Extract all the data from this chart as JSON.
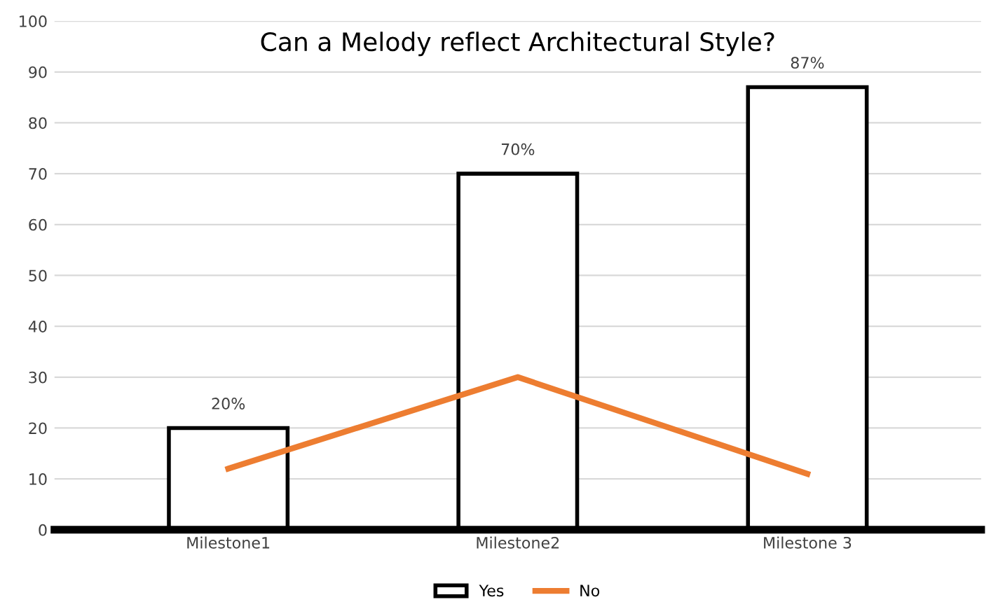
{
  "chart_data": {
    "type": "bar",
    "title": "Can a Melody reflect Architectural Style?",
    "categories": [
      "Milestone1",
      "Milestone2",
      "Milestone 3"
    ],
    "series": [
      {
        "name": "Yes",
        "color": "#ffffff",
        "values": [
          20,
          70,
          87
        ],
        "value_labels": [
          "20%",
          "70%",
          "87%"
        ]
      },
      {
        "name": "No",
        "type": "line",
        "color": "#ed7d31",
        "values": [
          12,
          30,
          11
        ]
      }
    ],
    "ylim": [
      0,
      100
    ],
    "yticks": [
      0,
      10,
      20,
      30,
      40,
      50,
      60,
      70,
      80,
      90,
      100
    ],
    "grid": "y",
    "legend": "bottom"
  }
}
